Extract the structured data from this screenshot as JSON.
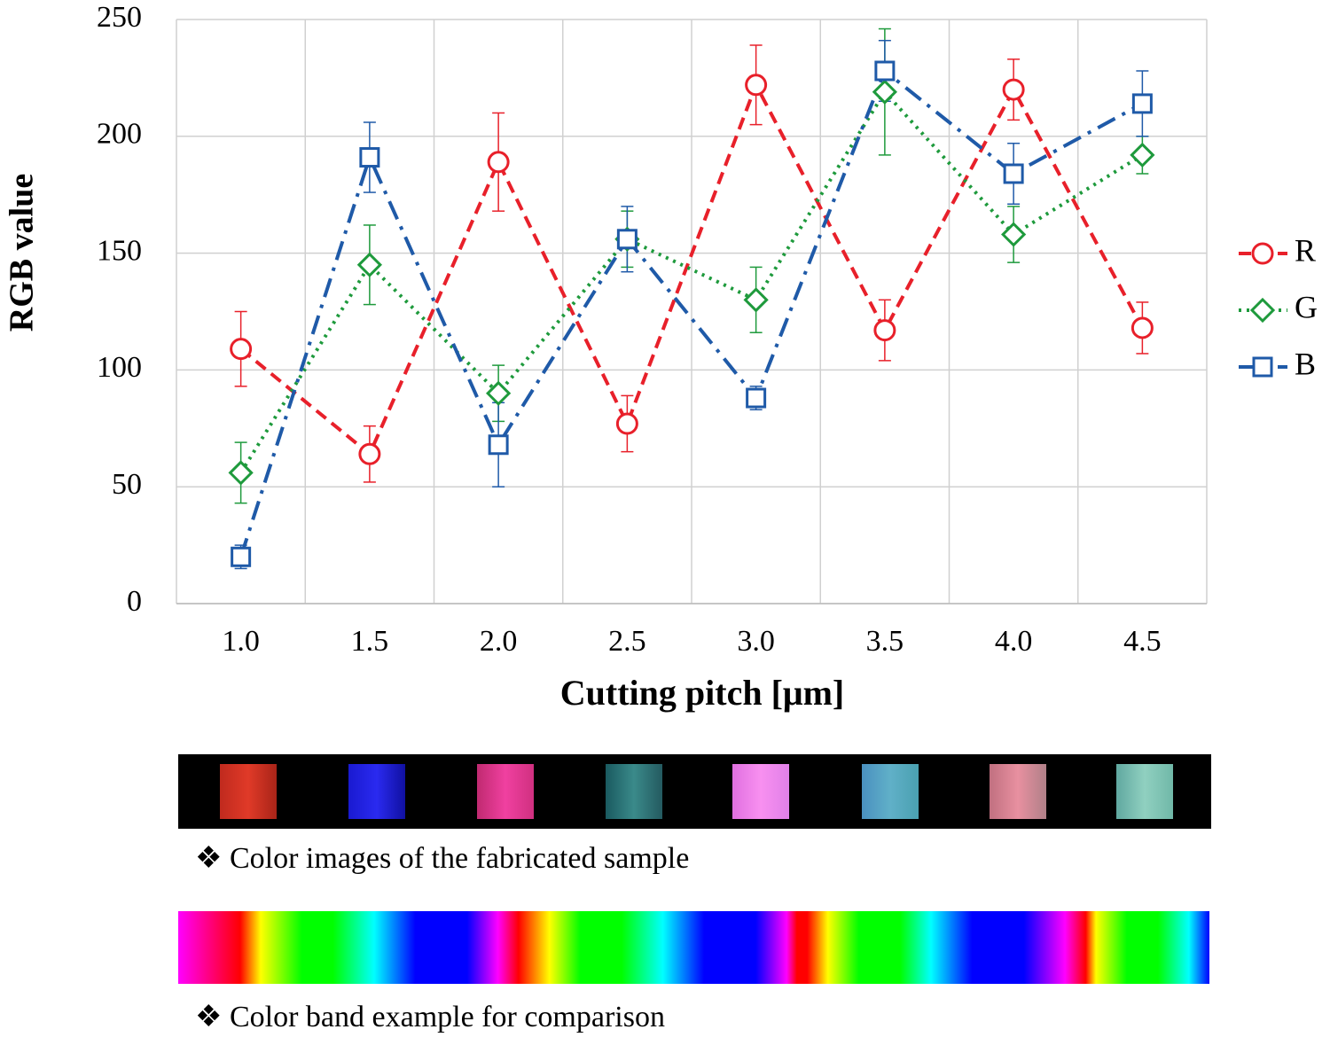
{
  "chart_data": {
    "type": "line",
    "x_label": "Cutting pitch [μm]",
    "y_label": "RGB value",
    "categories": [
      "1.0",
      "1.5",
      "2.0",
      "2.5",
      "3.0",
      "3.5",
      "4.0",
      "4.5"
    ],
    "series": [
      {
        "name": "R",
        "color": "#e8202a",
        "line_style": "dashed",
        "marker": "circle",
        "values": [
          109,
          64,
          189,
          77,
          222,
          117,
          220,
          118
        ],
        "errors": [
          16,
          12,
          21,
          12,
          17,
          13,
          13,
          11
        ]
      },
      {
        "name": "G",
        "color": "#1e9a3c",
        "line_style": "dotted",
        "marker": "diamond",
        "values": [
          56,
          145,
          90,
          156,
          130,
          219,
          158,
          192
        ],
        "errors": [
          13,
          17,
          12,
          12,
          14,
          27,
          12,
          8
        ]
      },
      {
        "name": "B",
        "color": "#1f5aa8",
        "line_style": "dashdot",
        "marker": "square",
        "values": [
          20,
          191,
          68,
          156,
          88,
          228,
          184,
          214
        ],
        "errors": [
          5,
          15,
          18,
          14,
          5,
          13,
          13,
          14
        ]
      }
    ],
    "ylim": [
      0,
      250
    ],
    "yticks": [
      0,
      50,
      100,
      150,
      200,
      250
    ],
    "grid": true,
    "legend": "right"
  },
  "captions": [
    "❖ Color images of the fabricated sample",
    "❖ Color band example for comparison"
  ]
}
